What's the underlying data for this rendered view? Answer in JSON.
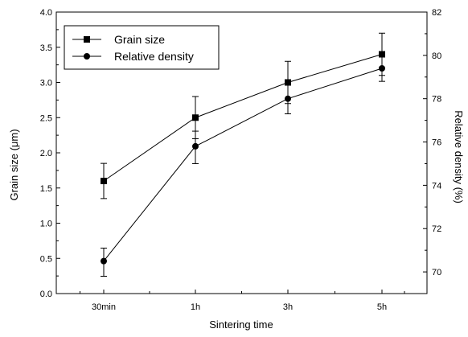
{
  "chart_data": {
    "type": "line",
    "xlabel": "Sintering time",
    "ylabel_left": "Grain size (μm)",
    "ylabel_right": "Relative density (%)",
    "categories": [
      "30min",
      "1h",
      "3h",
      "5h"
    ],
    "y_left": {
      "lim": [
        0.0,
        4.0
      ],
      "ticks": [
        "0.0",
        "0.5",
        "1.0",
        "1.5",
        "2.0",
        "2.5",
        "3.0",
        "3.5",
        "4.0"
      ]
    },
    "y_right": {
      "lim": [
        69,
        82
      ],
      "ticks": [
        "70",
        "72",
        "74",
        "76",
        "78",
        "80",
        "82"
      ]
    },
    "series": [
      {
        "name": "Grain size",
        "axis": "left",
        "marker": "square",
        "values": [
          1.6,
          2.5,
          3.0,
          3.4
        ],
        "err_low": [
          1.35,
          2.2,
          2.7,
          3.1
        ],
        "err_high": [
          1.85,
          2.8,
          3.3,
          3.7
        ]
      },
      {
        "name": "Relative density",
        "axis": "right",
        "marker": "circle",
        "values": [
          70.5,
          75.8,
          78.0,
          79.4
        ],
        "err_low": [
          69.8,
          75.0,
          77.3,
          78.8
        ],
        "err_high": [
          71.1,
          76.5,
          78.7,
          80.0
        ]
      }
    ],
    "grid": false,
    "legend": "top-left"
  }
}
